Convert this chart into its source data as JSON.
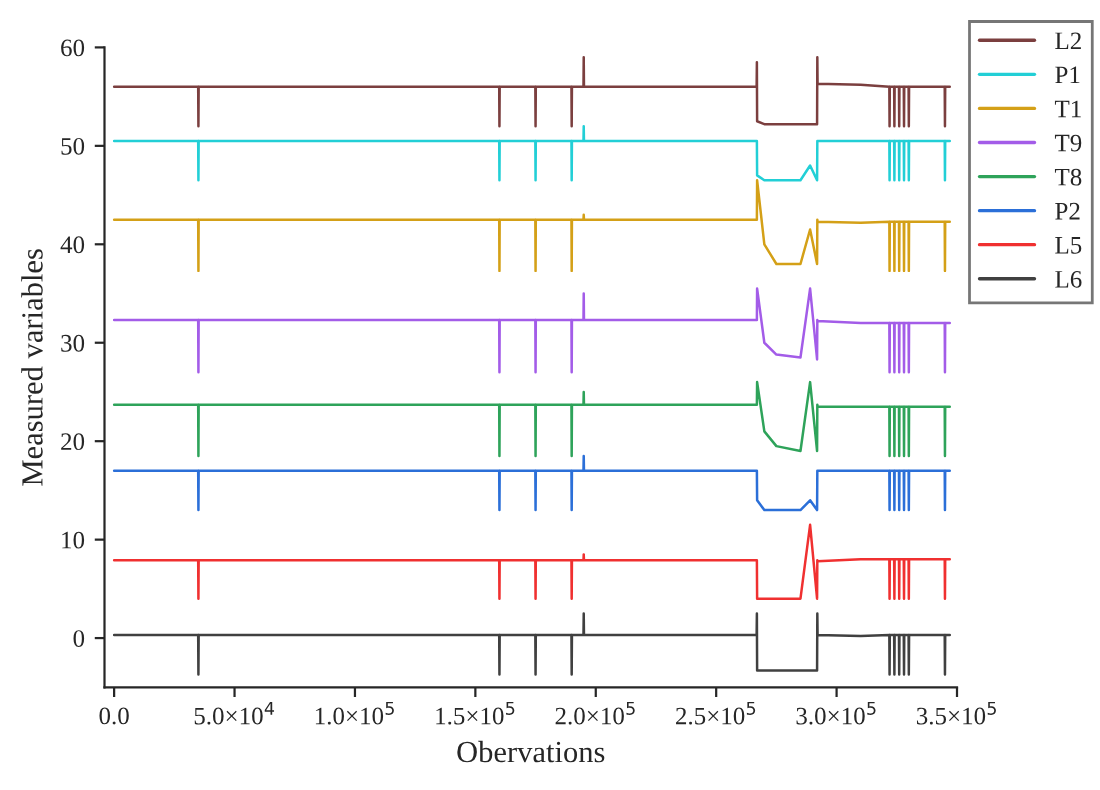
{
  "chart_data": {
    "type": "line",
    "xlabel": "Obervations",
    "ylabel": "Measured variables",
    "x": [
      0,
      34900,
      35000,
      35100,
      70000,
      100000,
      130000,
      159900,
      160000,
      160100,
      174900,
      175000,
      175100,
      189900,
      190000,
      190100,
      194900,
      195000,
      195100,
      266800,
      266900,
      267000,
      270000,
      275000,
      285000,
      289000,
      291900,
      292000,
      292100,
      310000,
      321900,
      322000,
      322100,
      323900,
      324000,
      324100,
      325900,
      326000,
      326100,
      327900,
      328000,
      328100,
      329900,
      330000,
      330100,
      344900,
      345000,
      345100,
      347000
    ],
    "series": [
      {
        "name": "L2",
        "color": "#7b3f3f",
        "values": [
          56,
          56,
          52,
          56,
          56,
          56,
          56,
          56,
          52,
          56,
          56,
          52,
          56,
          56,
          52,
          56,
          56,
          59,
          56,
          56,
          58.5,
          52.5,
          52.2,
          52.2,
          52.2,
          52.2,
          52.2,
          59,
          56.3,
          56.2,
          56,
          52,
          56,
          56,
          52,
          56,
          56,
          52,
          56,
          56,
          52,
          56,
          56,
          52,
          56,
          56,
          52,
          56,
          56
        ]
      },
      {
        "name": "P1",
        "color": "#22cfd6",
        "values": [
          50.5,
          50.5,
          46.5,
          50.5,
          50.5,
          50.5,
          50.5,
          50.5,
          46.5,
          50.5,
          50.5,
          46.5,
          50.5,
          50.5,
          46.5,
          50.5,
          50.5,
          52,
          50.5,
          50.5,
          50.5,
          47,
          46.5,
          46.5,
          46.5,
          48,
          46.5,
          50.5,
          50.5,
          50.5,
          50.5,
          46.5,
          50.5,
          50.5,
          46.5,
          50.5,
          50.5,
          46.5,
          50.5,
          50.5,
          46.5,
          50.5,
          50.5,
          46.5,
          50.5,
          50.5,
          46.5,
          50.5,
          50.5
        ]
      },
      {
        "name": "T1",
        "color": "#d4a017",
        "values": [
          42.5,
          42.5,
          37.3,
          42.5,
          42.5,
          42.5,
          42.5,
          42.5,
          37.3,
          42.5,
          42.5,
          37.3,
          42.5,
          42.5,
          37.3,
          42.5,
          42.5,
          43,
          42.5,
          42.5,
          42.5,
          46.5,
          40,
          38,
          38,
          41.5,
          38,
          42.5,
          42.3,
          42.2,
          42.3,
          37.3,
          42.3,
          42.3,
          37.3,
          42.3,
          42.3,
          37.3,
          42.3,
          42.3,
          37.3,
          42.3,
          42.3,
          37.3,
          42.3,
          42.3,
          37.3,
          42.3,
          42.3
        ]
      },
      {
        "name": "T9",
        "color": "#a35ce8",
        "values": [
          32.3,
          32.3,
          27,
          32.3,
          32.3,
          32.3,
          32.3,
          32.3,
          27,
          32.3,
          32.3,
          27,
          32.3,
          32.3,
          27,
          32.3,
          32.3,
          35,
          32.3,
          32.3,
          32.3,
          35.5,
          30,
          28.8,
          28.5,
          35.5,
          28.3,
          32.3,
          32.2,
          32,
          32,
          27,
          32,
          32,
          27,
          32,
          32,
          27,
          32,
          32,
          27,
          32,
          32,
          27,
          32,
          32,
          27,
          32,
          32
        ]
      },
      {
        "name": "T8",
        "color": "#2ea35a",
        "values": [
          23.7,
          23.7,
          18.5,
          23.7,
          23.7,
          23.7,
          23.7,
          23.7,
          18.5,
          23.7,
          23.7,
          18.5,
          23.7,
          23.7,
          18.5,
          23.7,
          23.7,
          25,
          23.7,
          23.7,
          23.7,
          26,
          21,
          19.5,
          19,
          26,
          19,
          23.7,
          23.5,
          23.5,
          23.5,
          18.5,
          23.5,
          23.5,
          18.5,
          23.5,
          23.5,
          18.5,
          23.5,
          23.5,
          18.5,
          23.5,
          23.5,
          18.5,
          23.5,
          23.5,
          18.5,
          23.5,
          23.5
        ]
      },
      {
        "name": "P2",
        "color": "#2b6fd8",
        "values": [
          17,
          17,
          13,
          17,
          17,
          17,
          17,
          17,
          13,
          17,
          17,
          13,
          17,
          17,
          13,
          17,
          17,
          18.5,
          17,
          17,
          17,
          14,
          13,
          13,
          13,
          14,
          13,
          17,
          17,
          17,
          17,
          13,
          17,
          17,
          13,
          17,
          17,
          13,
          17,
          17,
          13,
          17,
          17,
          13,
          17,
          17,
          13,
          17,
          17
        ]
      },
      {
        "name": "L5",
        "color": "#f03030",
        "values": [
          7.9,
          7.9,
          4,
          7.9,
          7.9,
          7.9,
          7.9,
          7.9,
          4,
          7.9,
          7.9,
          4,
          7.9,
          7.9,
          4,
          7.9,
          7.9,
          8.5,
          7.9,
          7.9,
          7.9,
          4,
          4,
          4,
          4,
          11.5,
          4,
          7.9,
          7.8,
          8,
          8,
          4,
          8,
          8,
          4,
          8,
          8,
          4,
          8,
          8,
          4,
          8,
          8,
          4,
          8,
          8,
          4,
          8,
          8
        ]
      },
      {
        "name": "L6",
        "color": "#404040",
        "values": [
          0.3,
          0.3,
          -3.7,
          0.3,
          0.3,
          0.3,
          0.3,
          0.3,
          -3.7,
          0.3,
          0.3,
          -3.7,
          0.3,
          0.3,
          -3.7,
          0.3,
          0.3,
          2.5,
          0.3,
          0.3,
          2.5,
          -3.3,
          -3.3,
          -3.3,
          -3.3,
          -3.3,
          -3.3,
          2.5,
          0.3,
          0.2,
          0.3,
          -3.7,
          0.3,
          0.3,
          -3.7,
          0.3,
          0.3,
          -3.7,
          0.3,
          0.3,
          -3.7,
          0.3,
          0.3,
          -3.7,
          0.3,
          0.3,
          -3.7,
          0.3,
          0.3
        ]
      }
    ],
    "xlim": [
      -4000,
      350000
    ],
    "ylim": [
      -5,
      60
    ],
    "xticks": [
      {
        "value": 0,
        "label": "0.0"
      },
      {
        "value": 50000,
        "label": "5.0×10$^{4}$"
      },
      {
        "value": 100000,
        "label": "1.0×10$^{5}$"
      },
      {
        "value": 150000,
        "label": "1.5×10$^{5}$"
      },
      {
        "value": 200000,
        "label": "2.0×10$^{5}$"
      },
      {
        "value": 250000,
        "label": "2.5×10$^{5}$"
      },
      {
        "value": 300000,
        "label": "3.0×10$^{5}$"
      },
      {
        "value": 350000,
        "label": "3.5×10$^{5}$"
      }
    ],
    "yticks": [
      0,
      10,
      20,
      30,
      40,
      50,
      60
    ],
    "grid": false,
    "legend": "top right",
    "marker": "none",
    "line_style": "solid"
  }
}
